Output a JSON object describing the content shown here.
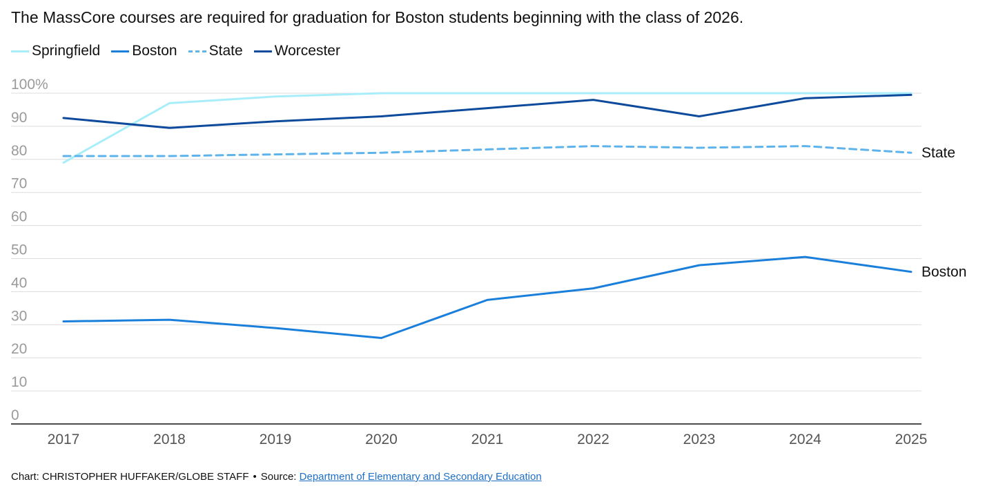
{
  "subtitle": "The MassCore courses are required for graduation for Boston students beginning with the class of 2026.",
  "legend": [
    {
      "label": "Springfield",
      "color": "#a8eefa",
      "dash": false
    },
    {
      "label": "Boston",
      "color": "#1a7fdb",
      "dash": false
    },
    {
      "label": "State",
      "color": "#5eb3eb",
      "dash": true
    },
    {
      "label": "Worcester",
      "color": "#0d4a9c",
      "dash": false
    }
  ],
  "chart_data": {
    "type": "line",
    "x": [
      "2017",
      "2018",
      "2019",
      "2020",
      "2021",
      "2022",
      "2023",
      "2024",
      "2025"
    ],
    "ylim": [
      0,
      100
    ],
    "ytick_labels": [
      "0",
      "10",
      "20",
      "30",
      "40",
      "50",
      "60",
      "70",
      "80",
      "90",
      "100%"
    ],
    "grid": true,
    "series": [
      {
        "name": "Springfield",
        "color": "#a8eefa",
        "dash": false,
        "values": [
          79,
          97,
          99,
          100,
          100,
          100,
          100,
          100,
          100
        ]
      },
      {
        "name": "State",
        "color": "#5eb3eb",
        "dash": true,
        "end_label": "State",
        "values": [
          81,
          81,
          81.5,
          82,
          83,
          84,
          83.5,
          84,
          82
        ]
      },
      {
        "name": "Worcester",
        "color": "#0d4a9c",
        "dash": false,
        "values": [
          92.5,
          89.5,
          91.5,
          93,
          95.5,
          98,
          93,
          98.5,
          99.5
        ]
      },
      {
        "name": "Boston",
        "color": "#1a7fdb",
        "dash": false,
        "end_label": "Boston",
        "values": [
          31,
          31.5,
          29,
          26,
          37.5,
          41,
          48,
          50.5,
          46
        ]
      }
    ]
  },
  "footer": {
    "credit": "Chart: CHRISTOPHER HUFFAKER/GLOBE STAFF",
    "separator": "•",
    "source_prefix": "Source:",
    "source_link": "Department of Elementary and Secondary Education"
  }
}
